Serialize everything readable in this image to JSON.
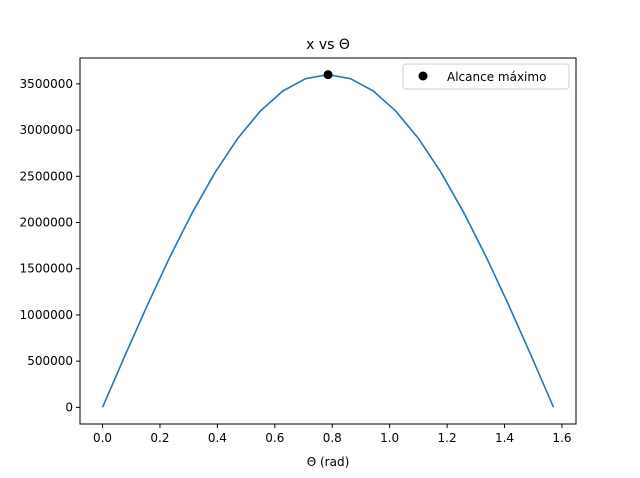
{
  "chart_data": {
    "type": "line",
    "title": "x vs Θ",
    "xlabel": "Θ (rad)",
    "ylabel": "",
    "xlim": [
      -0.0785,
      1.649
    ],
    "ylim": [
      -180000,
      3780000
    ],
    "xticks": [
      0.0,
      0.2,
      0.4,
      0.6,
      0.8,
      1.0,
      1.2,
      1.4,
      1.6
    ],
    "xtick_labels": [
      "0.0",
      "0.2",
      "0.4",
      "0.6",
      "0.8",
      "1.0",
      "1.2",
      "1.4",
      "1.6"
    ],
    "yticks": [
      0,
      500000,
      1000000,
      1500000,
      2000000,
      2500000,
      3000000,
      3500000
    ],
    "ytick_labels": [
      "0",
      "500000",
      "1000000",
      "1500000",
      "2000000",
      "2500000",
      "3000000",
      "3500000"
    ],
    "grid": false,
    "legend_position": "top-right",
    "series": [
      {
        "kind": "line",
        "color": "#1f77b4",
        "x": [
          0.0,
          0.0785,
          0.1571,
          0.2356,
          0.3142,
          0.3927,
          0.4712,
          0.5498,
          0.6283,
          0.7069,
          0.7854,
          0.8639,
          0.9425,
          1.021,
          1.0996,
          1.1781,
          1.2566,
          1.3352,
          1.4137,
          1.4923,
          1.5708
        ],
        "y": [
          0,
          563000,
          1112000,
          1634000,
          2116000,
          2546000,
          2912000,
          3207000,
          3424000,
          3556000,
          3600000,
          3556000,
          3424000,
          3207000,
          2912000,
          2546000,
          2116000,
          1634000,
          1112000,
          563000,
          0
        ]
      },
      {
        "kind": "point",
        "name": "Alcance máximo",
        "color": "#000000",
        "x": [
          0.7854
        ],
        "y": [
          3600000
        ]
      }
    ]
  }
}
